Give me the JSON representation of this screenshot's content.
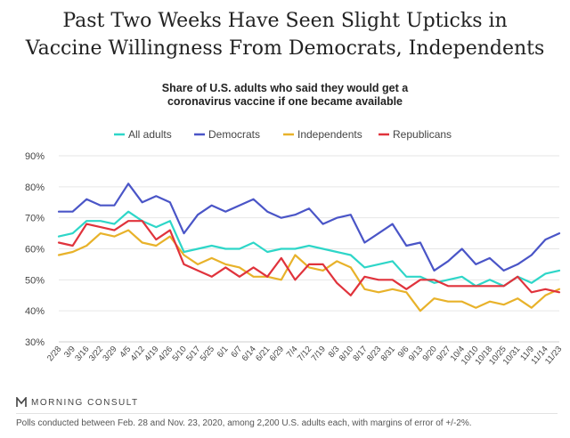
{
  "title": "Past Two Weeks Have Seen Slight Upticks in\nVaccine Willingness From Democrats, Independents",
  "subtitle": "Share of U.S. adults who said they would get a\ncoronavirus vaccine if one became available",
  "brand": "MORNING CONSULT",
  "footnote": "Polls conducted between Feb. 28 and Nov. 23, 2020, among 2,200 U.S. adults each, with margins of error of +/-2%.",
  "chart_data": {
    "type": "line",
    "title": "Share of U.S. adults who said they would get a coronavirus vaccine if one became available",
    "xlabel": "",
    "ylabel": "",
    "ylim": [
      30,
      90
    ],
    "yticks": [
      30,
      40,
      50,
      60,
      70,
      80,
      90
    ],
    "ytick_labels": [
      "30%",
      "40%",
      "50%",
      "60%",
      "70%",
      "80%",
      "90%"
    ],
    "grid": true,
    "legend_position": "top",
    "x": [
      "2/28",
      "3/9",
      "3/16",
      "3/22",
      "3/29",
      "4/5",
      "4/12",
      "4/19",
      "4/26",
      "5/10",
      "5/17",
      "5/25",
      "6/1",
      "6/7",
      "6/14",
      "6/21",
      "6/29",
      "7/4",
      "7/12",
      "7/19",
      "8/3",
      "8/10",
      "8/17",
      "8/23",
      "8/31",
      "9/6",
      "9/13",
      "9/20",
      "9/27",
      "10/4",
      "10/10",
      "10/18",
      "10/25",
      "10/31",
      "11/9",
      "11/14",
      "11/23"
    ],
    "series": [
      {
        "name": "All adults",
        "color": "#2ed6c8",
        "values": [
          64,
          65,
          69,
          69,
          68,
          72,
          69,
          67,
          69,
          59,
          60,
          61,
          60,
          60,
          62,
          59,
          60,
          60,
          61,
          60,
          59,
          58,
          54,
          55,
          56,
          51,
          51,
          49,
          50,
          51,
          48,
          50,
          48,
          51,
          49,
          52,
          53
        ]
      },
      {
        "name": "Democrats",
        "color": "#4a55c7",
        "values": [
          72,
          72,
          76,
          74,
          74,
          81,
          75,
          77,
          75,
          65,
          71,
          74,
          72,
          74,
          76,
          72,
          70,
          71,
          73,
          68,
          70,
          71,
          62,
          65,
          68,
          61,
          62,
          53,
          56,
          60,
          55,
          57,
          53,
          55,
          58,
          63,
          65
        ]
      },
      {
        "name": "Independents",
        "color": "#e8b22a",
        "values": [
          58,
          59,
          61,
          65,
          64,
          66,
          62,
          61,
          64,
          58,
          55,
          57,
          55,
          54,
          51,
          51,
          50,
          58,
          54,
          53,
          56,
          54,
          47,
          46,
          47,
          46,
          40,
          44,
          43,
          43,
          41,
          43,
          42,
          44,
          41,
          45,
          47
        ]
      },
      {
        "name": "Republicans",
        "color": "#e0333c",
        "values": [
          62,
          61,
          68,
          67,
          66,
          69,
          69,
          63,
          66,
          55,
          53,
          51,
          54,
          51,
          54,
          51,
          57,
          50,
          55,
          55,
          49,
          45,
          51,
          50,
          50,
          47,
          50,
          50,
          48,
          48,
          48,
          48,
          48,
          51,
          46,
          47,
          46
        ]
      }
    ]
  }
}
